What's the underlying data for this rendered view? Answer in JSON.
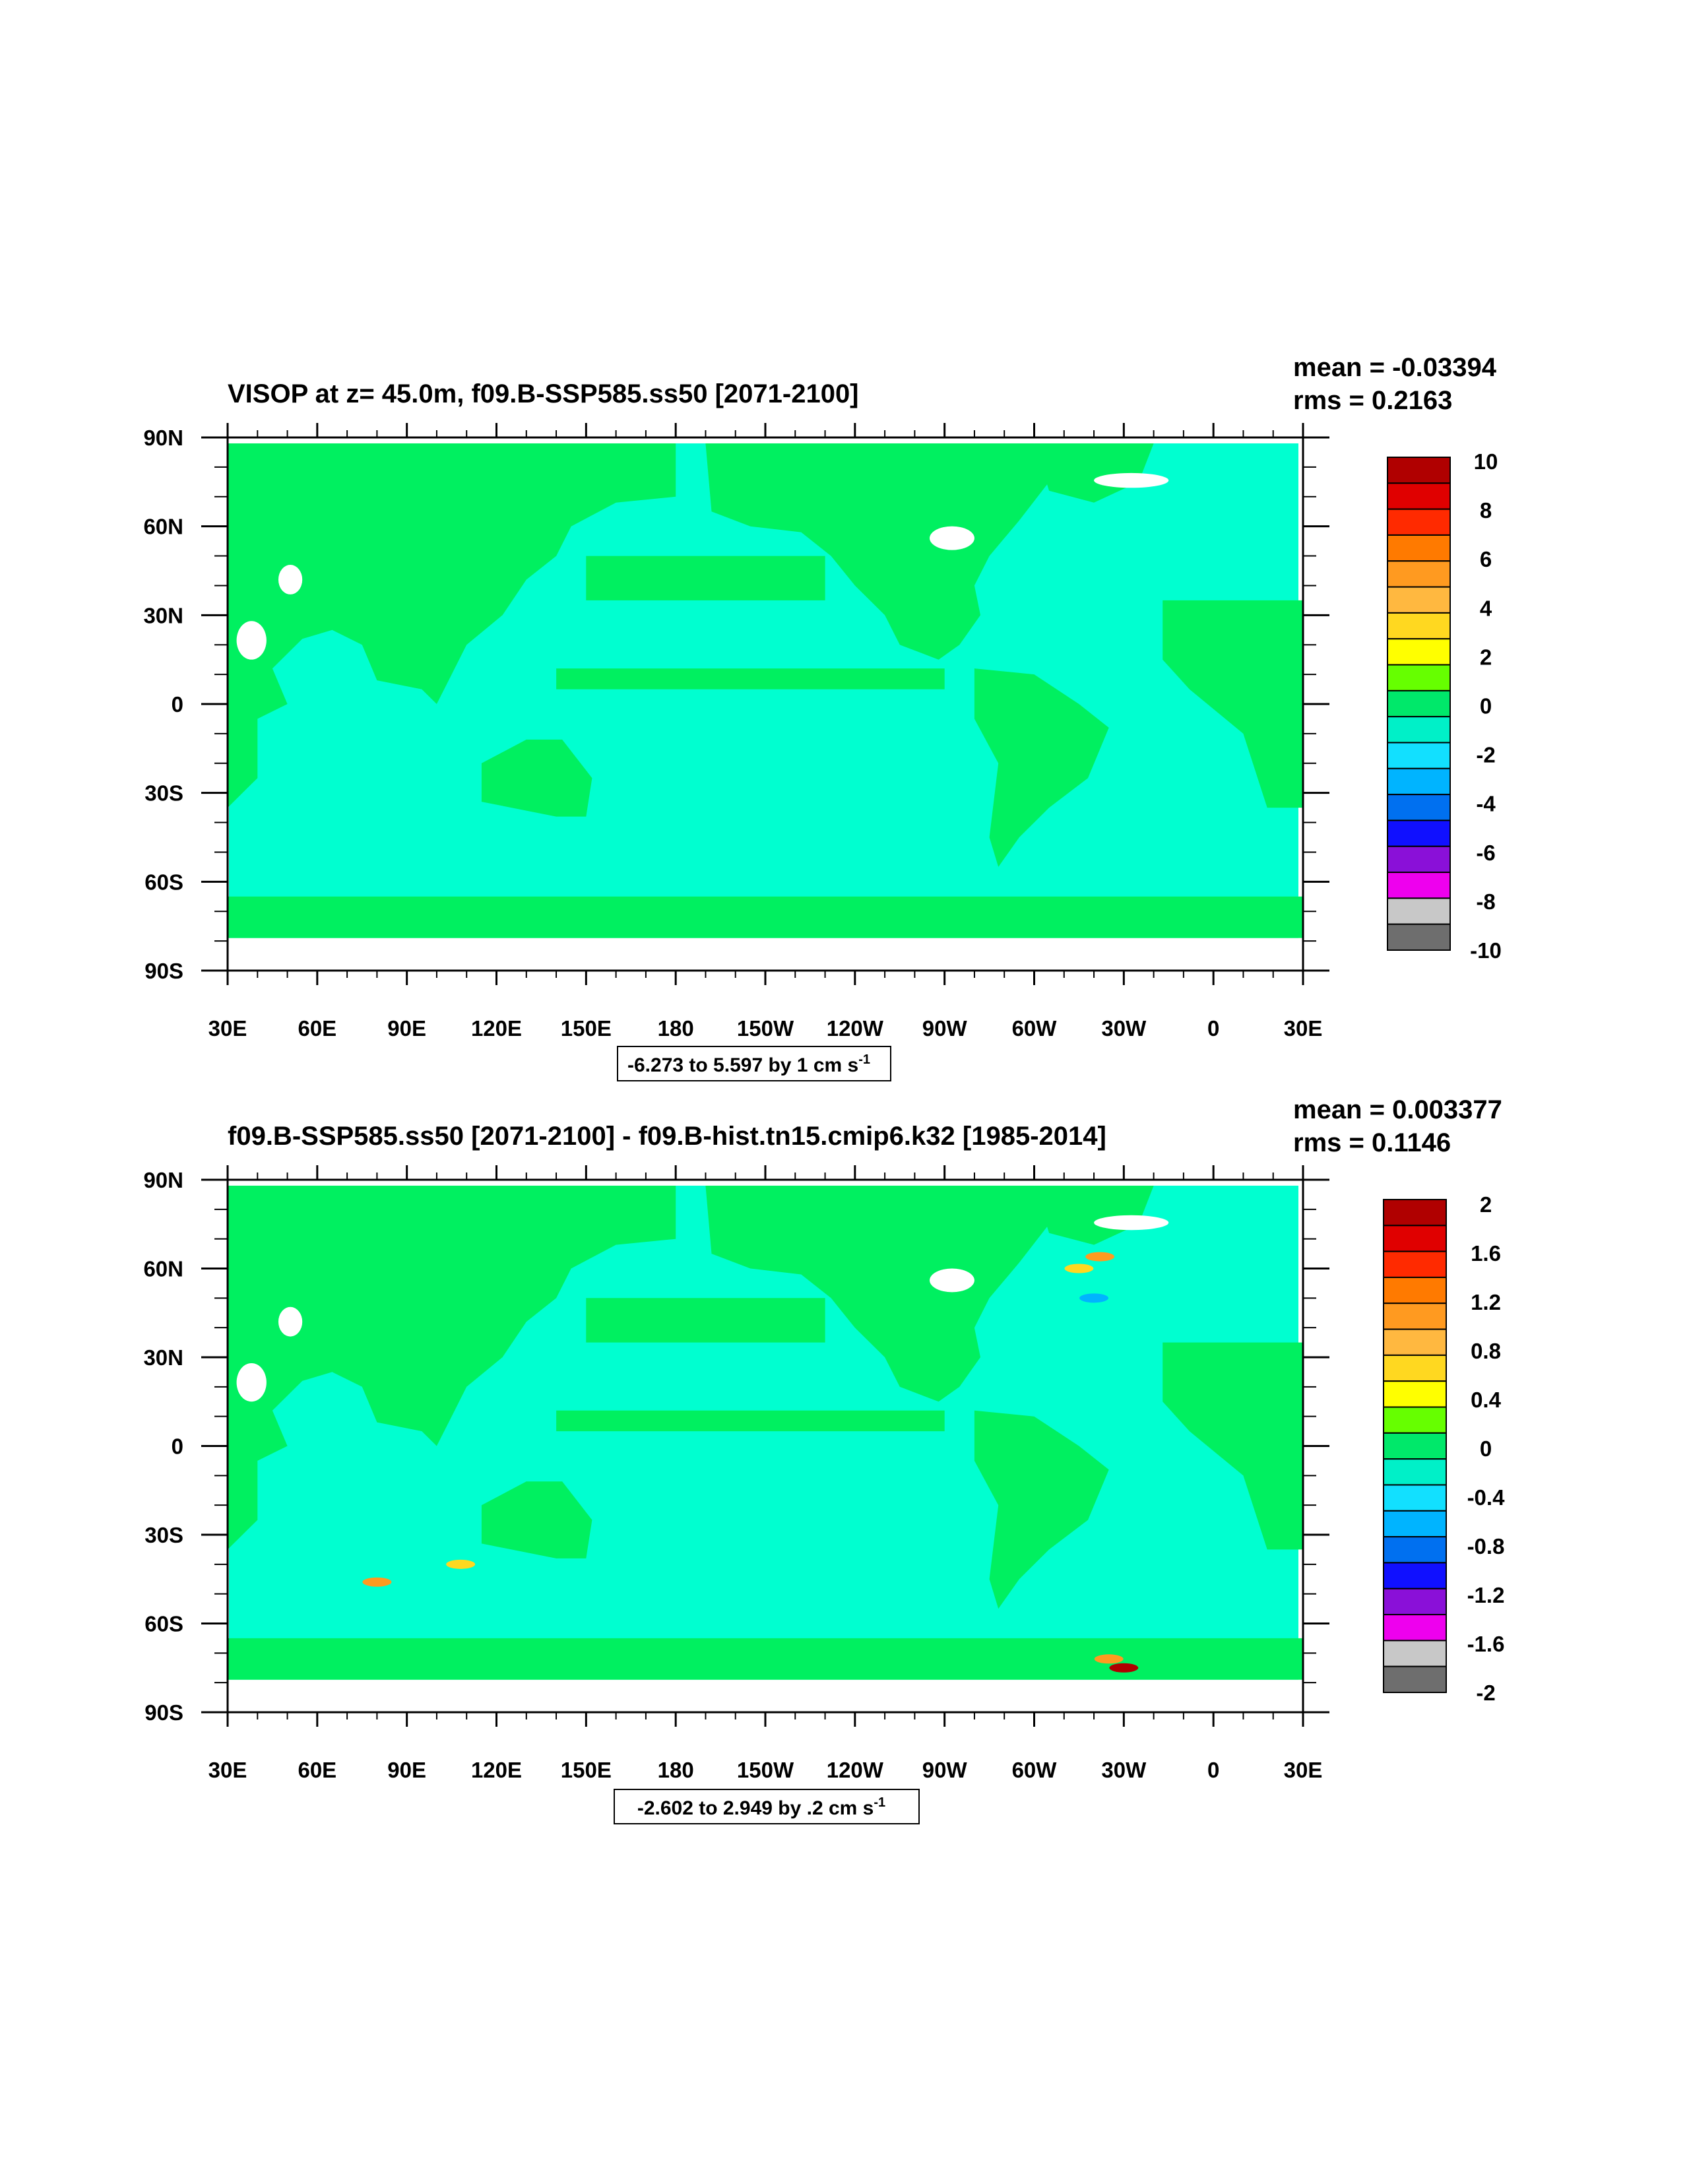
{
  "chart_data": [
    {
      "type": "heatmap",
      "title": "VISOP at z=  45.0m, f09.B-SSP585.ss50 [2071-2100]",
      "stats": {
        "mean": "mean = -0.03394",
        "rms": "rms = 0.2163"
      },
      "range_label": "-6.273 to 5.597 by 1 cm s",
      "range_sup": "-1",
      "x_ticks": [
        "30E",
        "60E",
        "90E",
        "120E",
        "150E",
        "180",
        "150W",
        "120W",
        "90W",
        "60W",
        "30W",
        "0",
        "30E"
      ],
      "y_ticks": [
        "90N",
        "60N",
        "30N",
        "0",
        "30S",
        "60S",
        "90S"
      ],
      "xlim": [
        30,
        390
      ],
      "ylim": [
        -90,
        90
      ],
      "colorbar": {
        "labels": [
          "10",
          "8",
          "6",
          "4",
          "2",
          "0",
          "-2",
          "-4",
          "-6",
          "-8",
          "-10"
        ],
        "colors": [
          "#b00000",
          "#e00000",
          "#ff2a00",
          "#ff7a00",
          "#ff9a20",
          "#ffb840",
          "#ffd820",
          "#ffff00",
          "#66ff00",
          "#00e86a",
          "#00f0c8",
          "#12e0ff",
          "#00b4ff",
          "#0070f0",
          "#1010ff",
          "#8a10d8",
          "#ee00ee",
          "#c8c8c8",
          "#6e6e6e"
        ]
      },
      "field_colors": {
        "ocean_weak": "#00ffd0",
        "ocean_zero": "#00f060",
        "missing": "#ffffff"
      }
    },
    {
      "type": "heatmap",
      "title": "f09.B-SSP585.ss50 [2071-2100] - f09.B-hist.tn15.cmip6.k32 [1985-2014]",
      "stats": {
        "mean": "mean = 0.003377",
        "rms": "rms = 0.1146"
      },
      "range_label": "-2.602 to 2.949 by .2 cm s",
      "range_sup": "-1",
      "x_ticks": [
        "30E",
        "60E",
        "90E",
        "120E",
        "150E",
        "180",
        "150W",
        "120W",
        "90W",
        "60W",
        "30W",
        "0",
        "30E"
      ],
      "y_ticks": [
        "90N",
        "60N",
        "30N",
        "0",
        "30S",
        "60S",
        "90S"
      ],
      "xlim": [
        30,
        390
      ],
      "ylim": [
        -90,
        90
      ],
      "colorbar": {
        "labels": [
          "2",
          "1.6",
          "1.2",
          "0.8",
          "0.4",
          "0",
          "-0.4",
          "-0.8",
          "-1.2",
          "-1.6",
          "-2"
        ],
        "colors": [
          "#b00000",
          "#e00000",
          "#ff2a00",
          "#ff7a00",
          "#ff9a20",
          "#ffb840",
          "#ffd820",
          "#ffff00",
          "#66ff00",
          "#00e86a",
          "#00f0c8",
          "#12e0ff",
          "#00b4ff",
          "#0070f0",
          "#1010ff",
          "#8a10d8",
          "#ee00ee",
          "#c8c8c8",
          "#6e6e6e"
        ]
      },
      "field_colors": {
        "ocean_weak": "#00ffd0",
        "ocean_zero": "#00f060",
        "missing": "#ffffff"
      }
    }
  ]
}
